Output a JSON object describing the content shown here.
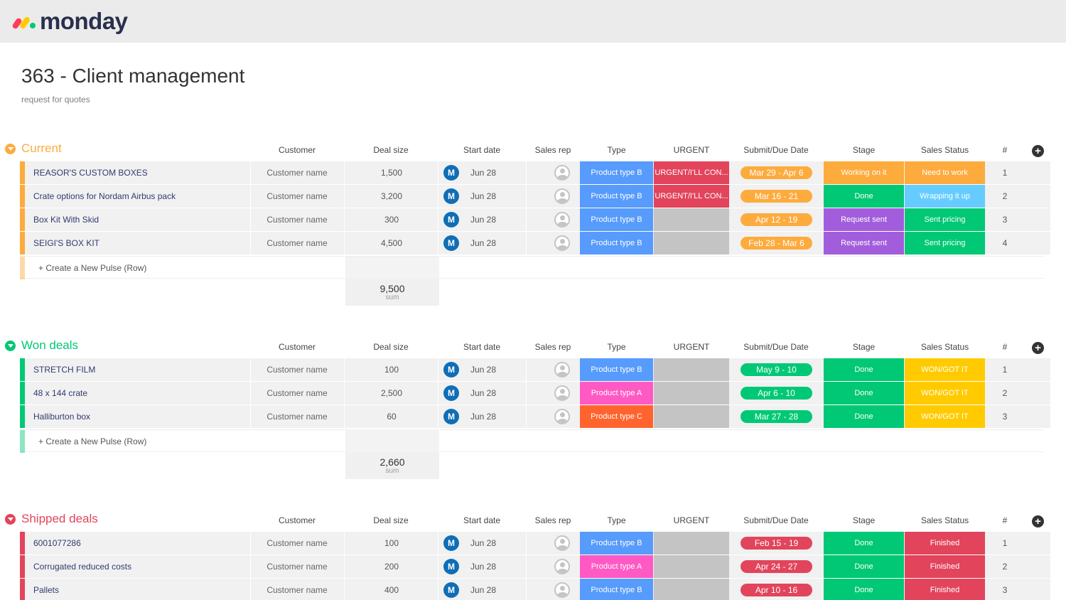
{
  "app": {
    "logo_text": "monday"
  },
  "board": {
    "title": "363 - Client management",
    "description": "request for quotes"
  },
  "columns": {
    "customer": "Customer",
    "deal_size": "Deal size",
    "start_date": "Start date",
    "sales_rep": "Sales rep",
    "type": "Type",
    "urgent": "URGENT",
    "due_date": "Submit/Due Date",
    "stage": "Stage",
    "sales_status": "Sales Status",
    "number": "#"
  },
  "new_row_label": "+ Create a New Pulse (Row)",
  "sum_label": "sum",
  "avatar_initial": "M",
  "colors": {
    "current": "#fdab3d",
    "won": "#00c875",
    "shipped": "#e2445c",
    "product_b": "#579bfc",
    "product_a": "#ff5ac4",
    "product_c": "#ff642e",
    "urgent": "#e2445c",
    "empty": "#c4c4c4",
    "working": "#fdab3d",
    "done": "#00c875",
    "request_sent": "#a25ddc",
    "need_work": "#fdab3d",
    "wrapping": "#66ccff",
    "sent_pricing": "#00c875",
    "won_got": "#ffcb00",
    "finished": "#e2445c"
  },
  "groups": [
    {
      "title": "Current",
      "color": "#fdab3d",
      "sum": "9,500",
      "rows": [
        {
          "name": "REASOR'S CUSTOM BOXES",
          "customer": "Customer name",
          "deal": "1,500",
          "start": "Jun 28",
          "type": "Product type B",
          "type_color": "#579bfc",
          "urgent": "URGENT/I'LL CON...",
          "urgent_color": "#e2445c",
          "due": "Mar 29 - Apr 6",
          "due_color": "#fdab3d",
          "stage": "Working on it",
          "stage_color": "#fdab3d",
          "status": "Need to work",
          "status_color": "#fdab3d",
          "num": "1"
        },
        {
          "name": "Crate options for Nordam Airbus pack",
          "customer": "Customer name",
          "deal": "3,200",
          "start": "Jun 28",
          "type": "Product type B",
          "type_color": "#579bfc",
          "urgent": "URGENT/I'LL CON...",
          "urgent_color": "#e2445c",
          "due": "Mar 16 - 21",
          "due_color": "#fdab3d",
          "stage": "Done",
          "stage_color": "#00c875",
          "status": "Wrapping it up",
          "status_color": "#66ccff",
          "num": "2"
        },
        {
          "name": "Box Kit With Skid",
          "customer": "Customer name",
          "deal": "300",
          "start": "Jun 28",
          "type": "Product type B",
          "type_color": "#579bfc",
          "urgent": "",
          "urgent_color": "#c4c4c4",
          "due": "Apr 12 - 19",
          "due_color": "#fdab3d",
          "stage": "Request sent",
          "stage_color": "#a25ddc",
          "status": "Sent pricing",
          "status_color": "#00c875",
          "num": "3"
        },
        {
          "name": "SEIGI'S BOX KIT",
          "customer": "Customer name",
          "deal": "4,500",
          "start": "Jun 28",
          "type": "Product type B",
          "type_color": "#579bfc",
          "urgent": "",
          "urgent_color": "#c4c4c4",
          "due": "Feb 28 - Mar 6",
          "due_color": "#fdab3d",
          "stage": "Request sent",
          "stage_color": "#a25ddc",
          "status": "Sent pricing",
          "status_color": "#00c875",
          "num": "4"
        }
      ]
    },
    {
      "title": "Won deals",
      "color": "#00c875",
      "sum": "2,660",
      "rows": [
        {
          "name": "STRETCH FILM",
          "customer": "Customer name",
          "deal": "100",
          "start": "Jun 28",
          "type": "Product type B",
          "type_color": "#579bfc",
          "urgent": "",
          "urgent_color": "#c4c4c4",
          "due": "May 9 - 10",
          "due_color": "#00c875",
          "stage": "Done",
          "stage_color": "#00c875",
          "status": "WON/GOT IT",
          "status_color": "#ffcb00",
          "num": "1"
        },
        {
          "name": "48 x 144 crate",
          "customer": "Customer name",
          "deal": "2,500",
          "start": "Jun 28",
          "type": "Product type A",
          "type_color": "#ff5ac4",
          "urgent": "",
          "urgent_color": "#c4c4c4",
          "due": "Apr 6 - 10",
          "due_color": "#00c875",
          "stage": "Done",
          "stage_color": "#00c875",
          "status": "WON/GOT IT",
          "status_color": "#ffcb00",
          "num": "2"
        },
        {
          "name": "Halliburton box",
          "customer": "Customer name",
          "deal": "60",
          "start": "Jun 28",
          "type": "Product type C",
          "type_color": "#ff642e",
          "urgent": "",
          "urgent_color": "#c4c4c4",
          "due": "Mar 27 - 28",
          "due_color": "#00c875",
          "stage": "Done",
          "stage_color": "#00c875",
          "status": "WON/GOT IT",
          "status_color": "#ffcb00",
          "num": "3"
        }
      ]
    },
    {
      "title": "Shipped deals",
      "color": "#e2445c",
      "sum": "",
      "rows": [
        {
          "name": "6001077286",
          "customer": "Customer name",
          "deal": "100",
          "start": "Jun 28",
          "type": "Product type B",
          "type_color": "#579bfc",
          "urgent": "",
          "urgent_color": "#c4c4c4",
          "due": "Feb 15 - 19",
          "due_color": "#e2445c",
          "stage": "Done",
          "stage_color": "#00c875",
          "status": "Finished",
          "status_color": "#e2445c",
          "num": "1"
        },
        {
          "name": "Corrugated reduced costs",
          "customer": "Customer name",
          "deal": "200",
          "start": "Jun 28",
          "type": "Product type A",
          "type_color": "#ff5ac4",
          "urgent": "",
          "urgent_color": "#c4c4c4",
          "due": "Apr 24 - 27",
          "due_color": "#e2445c",
          "stage": "Done",
          "stage_color": "#00c875",
          "status": "Finished",
          "status_color": "#e2445c",
          "num": "2"
        },
        {
          "name": "Pallets",
          "customer": "Customer name",
          "deal": "400",
          "start": "Jun 28",
          "type": "Product type B",
          "type_color": "#579bfc",
          "urgent": "",
          "urgent_color": "#c4c4c4",
          "due": "Apr 10 - 16",
          "due_color": "#e2445c",
          "stage": "Done",
          "stage_color": "#00c875",
          "status": "Finished",
          "status_color": "#e2445c",
          "num": "3"
        }
      ]
    }
  ]
}
